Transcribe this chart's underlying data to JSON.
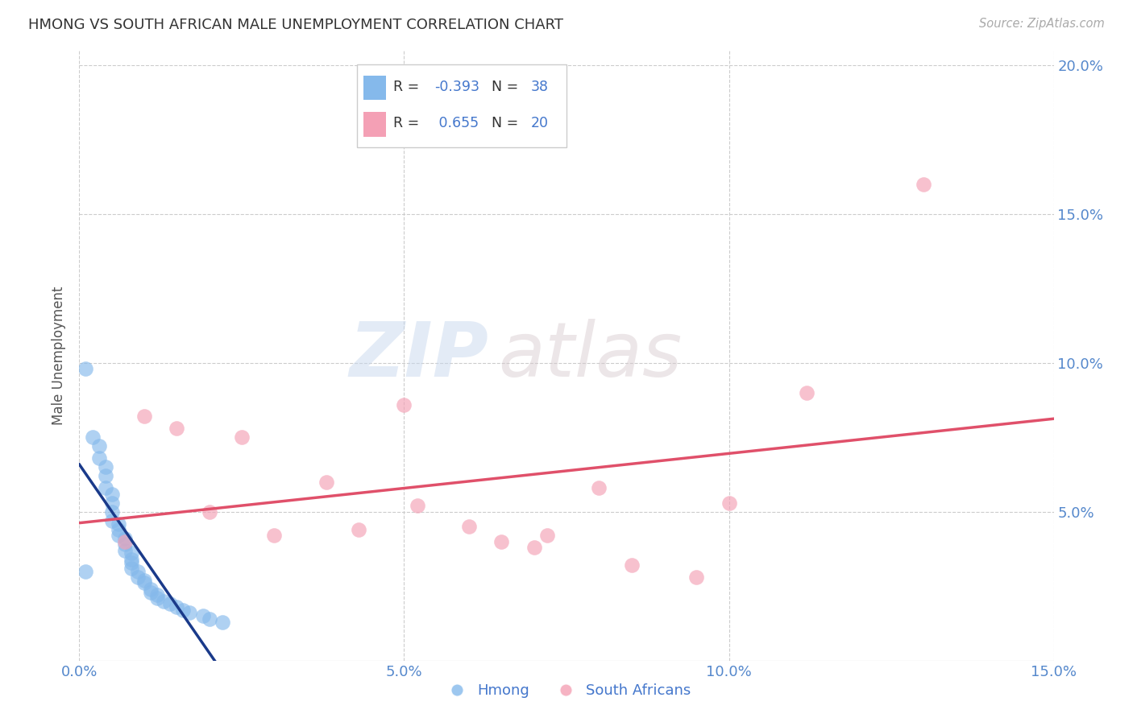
{
  "title": "HMONG VS SOUTH AFRICAN MALE UNEMPLOYMENT CORRELATION CHART",
  "source": "Source: ZipAtlas.com",
  "ylabel": "Male Unemployment",
  "xlim": [
    0.0,
    0.15
  ],
  "ylim": [
    0.0,
    0.205
  ],
  "xtick_vals": [
    0.0,
    0.05,
    0.1,
    0.15
  ],
  "xtick_labels": [
    "0.0%",
    "5.0%",
    "10.0%",
    "15.0%"
  ],
  "ytick_vals_right": [
    0.05,
    0.1,
    0.15,
    0.2
  ],
  "ytick_labels_right": [
    "5.0%",
    "10.0%",
    "15.0%",
    "20.0%"
  ],
  "hmong_color": "#85B9EB",
  "sa_color": "#F4A0B5",
  "hmong_line_color": "#1A3A8A",
  "sa_line_color": "#E0506A",
  "hmong_R": -0.393,
  "hmong_N": 38,
  "sa_R": 0.655,
  "sa_N": 20,
  "legend_label_hmong": "Hmong",
  "legend_label_sa": "South Africans",
  "watermark_zip": "ZIP",
  "watermark_atlas": "atlas",
  "hmong_x": [
    0.001,
    0.002,
    0.003,
    0.003,
    0.004,
    0.004,
    0.004,
    0.005,
    0.005,
    0.005,
    0.005,
    0.006,
    0.006,
    0.006,
    0.007,
    0.007,
    0.007,
    0.008,
    0.008,
    0.008,
    0.008,
    0.009,
    0.009,
    0.01,
    0.01,
    0.011,
    0.011,
    0.012,
    0.012,
    0.013,
    0.014,
    0.015,
    0.016,
    0.017,
    0.019,
    0.02,
    0.022,
    0.001
  ],
  "hmong_y": [
    0.03,
    0.075,
    0.072,
    0.068,
    0.065,
    0.062,
    0.058,
    0.056,
    0.053,
    0.05,
    0.047,
    0.046,
    0.044,
    0.042,
    0.041,
    0.039,
    0.037,
    0.036,
    0.034,
    0.033,
    0.031,
    0.03,
    0.028,
    0.027,
    0.026,
    0.024,
    0.023,
    0.022,
    0.021,
    0.02,
    0.019,
    0.018,
    0.017,
    0.016,
    0.015,
    0.014,
    0.013,
    0.098
  ],
  "sa_x": [
    0.007,
    0.01,
    0.015,
    0.02,
    0.025,
    0.03,
    0.038,
    0.043,
    0.05,
    0.052,
    0.06,
    0.065,
    0.07,
    0.072,
    0.08,
    0.085,
    0.095,
    0.1,
    0.112,
    0.13
  ],
  "sa_y": [
    0.04,
    0.082,
    0.078,
    0.05,
    0.075,
    0.042,
    0.06,
    0.044,
    0.086,
    0.052,
    0.045,
    0.04,
    0.038,
    0.042,
    0.058,
    0.032,
    0.028,
    0.053,
    0.09,
    0.16
  ],
  "grid_color": "#CCCCCC",
  "grid_linewidth": 0.8,
  "scatter_size": 180,
  "scatter_alpha": 0.65
}
